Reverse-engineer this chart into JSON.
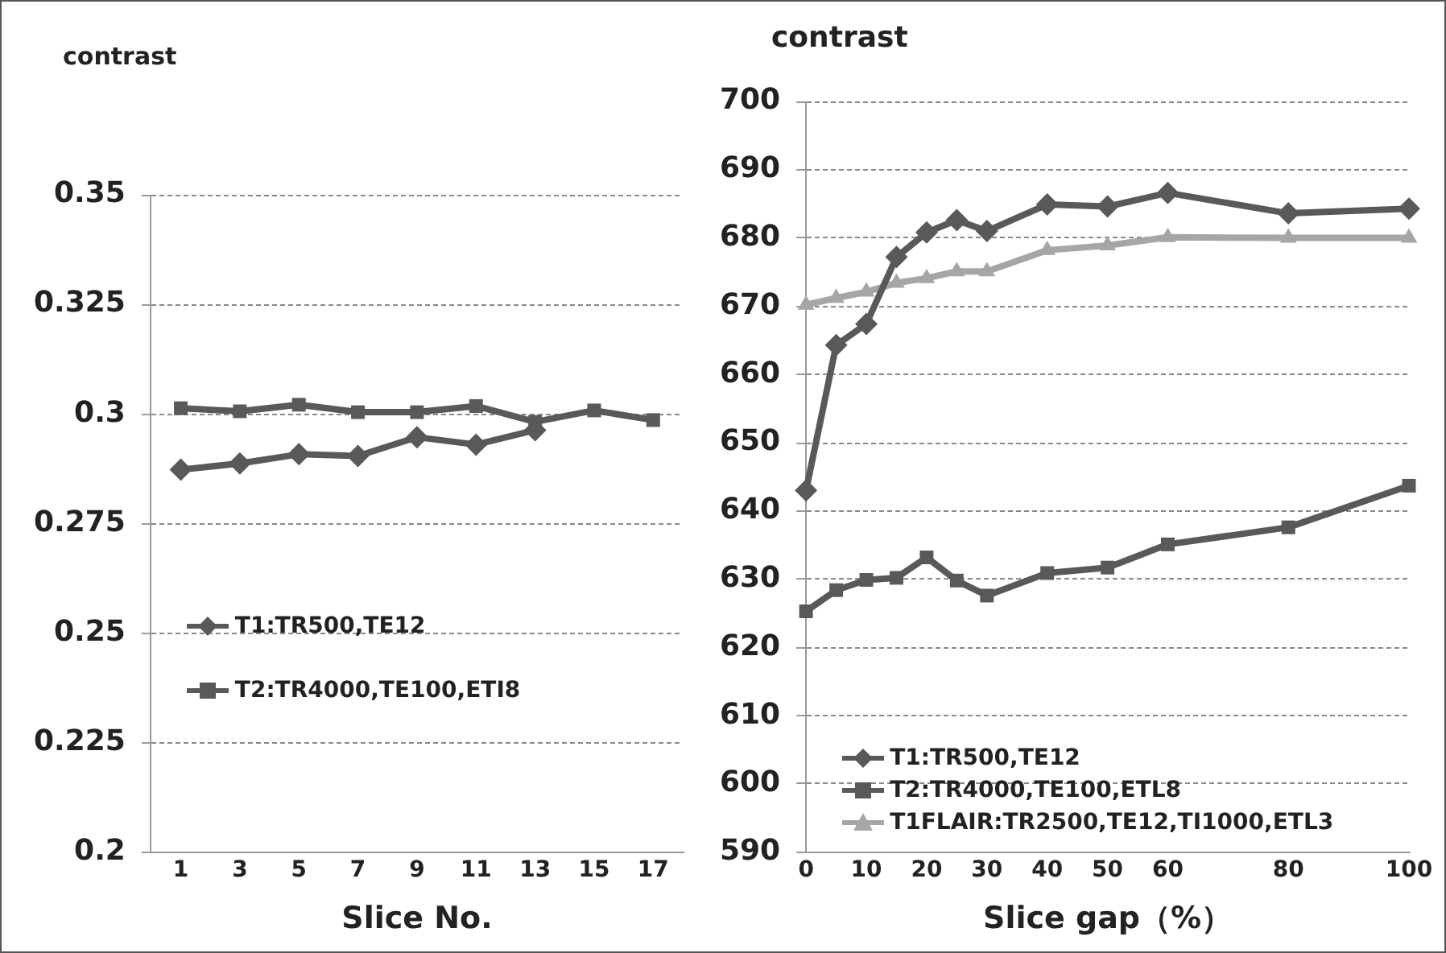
{
  "chart_data": [
    {
      "type": "line",
      "ylabel": "contrast",
      "xlabel": "Slice No.",
      "x": [
        1,
        3,
        5,
        7,
        9,
        11,
        13,
        15,
        17
      ],
      "xlim": [
        0,
        18
      ],
      "xticks": [
        1,
        3,
        5,
        7,
        9,
        11,
        13,
        15,
        17
      ],
      "series": [
        {
          "name": "T1:TR500,TE12",
          "color": "#595959",
          "marker": "diamond",
          "values": [
            0.2873,
            0.2887,
            0.2908,
            0.2904,
            0.2947,
            0.293,
            0.2963,
            null,
            null
          ]
        },
        {
          "name": "T2:TR4000,TE100,ETI8",
          "color": "#595959",
          "marker": "square",
          "values": [
            0.3013,
            0.3006,
            0.3021,
            0.3004,
            0.3004,
            0.3018,
            0.2982,
            0.3008,
            0.2986
          ]
        }
      ],
      "ylim": [
        0.2,
        0.35
      ],
      "yticks": [
        0.2,
        0.225,
        0.25,
        0.275,
        0.3,
        0.325,
        0.35
      ],
      "grid": "y",
      "legend": "bottom left",
      "line_style": "solid"
    },
    {
      "type": "line",
      "ylabel": "contrast",
      "xlabel": "Slice gap（%）",
      "x": [
        0,
        5,
        10,
        15,
        20,
        25,
        30,
        40,
        50,
        60,
        80,
        100
      ],
      "series": [
        {
          "name": "T1:TR500,TE12",
          "color": "#595959",
          "marker": "diamond",
          "values": [
            643,
            664.3,
            667.4,
            677.2,
            680.8,
            682.6,
            681,
            684.9,
            684.6,
            686.6,
            683.6,
            684.3
          ]
        },
        {
          "name": "T2:TR4000,TE100,ETL8",
          "color": "#595959",
          "marker": "square",
          "values": [
            625.3,
            628.4,
            629.9,
            630.2,
            633.2,
            629.8,
            627.6,
            630.9,
            631.7,
            635.1,
            637.6,
            643.7
          ]
        },
        {
          "name": "T1FLAIR:TR2500,TE12,TI1000,ETL3",
          "color": "#a6a6a6",
          "marker": "triangle",
          "values": [
            670.2,
            671.2,
            672.1,
            673.4,
            674.1,
            675.1,
            675.1,
            678.2,
            678.9,
            680.1,
            680,
            680
          ]
        }
      ],
      "xlim": [
        0,
        100
      ],
      "xticks": [
        0,
        10,
        20,
        30,
        40,
        50,
        60,
        80,
        100
      ],
      "ylim": [
        590,
        700
      ],
      "yticks": [
        590,
        600,
        610,
        620,
        630,
        640,
        650,
        660,
        670,
        680,
        690,
        700
      ],
      "grid": "y",
      "legend": "bottom left",
      "line_style": "solid"
    }
  ]
}
